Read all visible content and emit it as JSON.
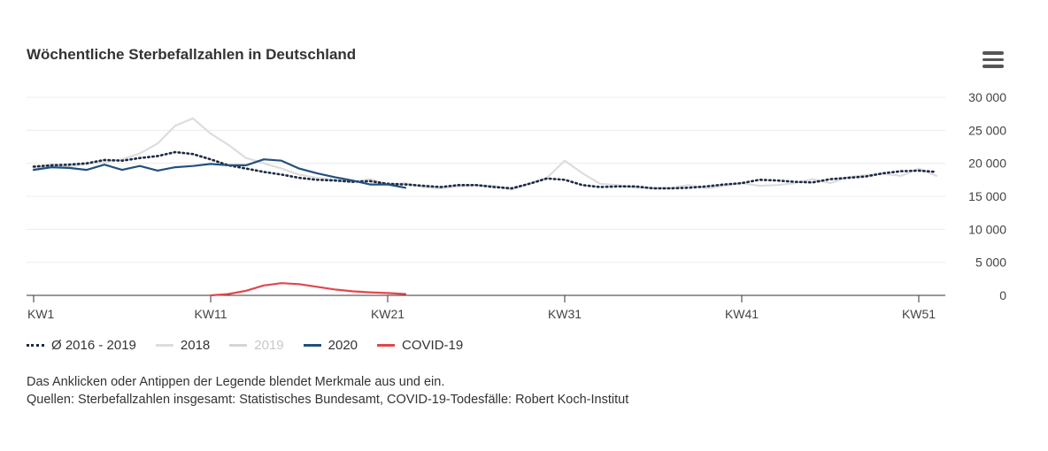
{
  "header": {
    "title": "Wöchentliche Sterbefallzahlen in Deutschland",
    "menu_icon": "hamburger-menu-icon"
  },
  "chart_data": {
    "type": "line",
    "title": "Wöchentliche Sterbefallzahlen in Deutschland",
    "xlabel": "",
    "ylabel": "",
    "xlim": [
      1,
      53
    ],
    "ylim": [
      0,
      30000
    ],
    "x_ticks": [
      1,
      11,
      21,
      31,
      41,
      51
    ],
    "x_tick_labels": [
      "KW1",
      "KW11",
      "KW21",
      "KW31",
      "KW41",
      "KW51"
    ],
    "y_ticks": [
      0,
      5000,
      10000,
      15000,
      20000,
      25000,
      30000
    ],
    "y_tick_labels": [
      "0",
      "5 000",
      "10 000",
      "15 000",
      "20 000",
      "25 000",
      "30 000"
    ],
    "grid": true,
    "legend_position": "bottom-left",
    "series": [
      {
        "name": "Ø 2016 - 2019",
        "color": "#1b2a44",
        "style": "dotted",
        "visible": true,
        "x": [
          1,
          2,
          3,
          4,
          5,
          6,
          7,
          8,
          9,
          10,
          11,
          12,
          13,
          14,
          15,
          16,
          17,
          18,
          19,
          20,
          21,
          22,
          23,
          24,
          25,
          26,
          27,
          28,
          29,
          30,
          31,
          32,
          33,
          34,
          35,
          36,
          37,
          38,
          39,
          40,
          41,
          42,
          43,
          44,
          45,
          46,
          47,
          48,
          49,
          50,
          51,
          52
        ],
        "values": [
          19500,
          19700,
          19800,
          20000,
          20500,
          20400,
          20800,
          21100,
          21700,
          21400,
          20600,
          19700,
          19200,
          18700,
          18300,
          17800,
          17500,
          17400,
          17200,
          17300,
          16900,
          16800,
          16600,
          16400,
          16700,
          16700,
          16400,
          16200,
          16900,
          17700,
          17500,
          16700,
          16400,
          16500,
          16500,
          16200,
          16200,
          16300,
          16500,
          16800,
          17000,
          17500,
          17400,
          17200,
          17100,
          17600,
          17800,
          18000,
          18500,
          18800,
          18900,
          18700
        ]
      },
      {
        "name": "2018",
        "color": "#dddddd",
        "style": "solid",
        "visible": true,
        "x": [
          1,
          2,
          3,
          4,
          5,
          6,
          7,
          8,
          9,
          10,
          11,
          12,
          13,
          14,
          15,
          16,
          17,
          18,
          19,
          20,
          21,
          22,
          23,
          24,
          25,
          26,
          27,
          28,
          29,
          30,
          31,
          32,
          33,
          34,
          35,
          36,
          37,
          38,
          39,
          40,
          41,
          42,
          43,
          44,
          45,
          46,
          47,
          48,
          49,
          50,
          51,
          52
        ],
        "values": [
          19200,
          19800,
          19500,
          19900,
          20200,
          20600,
          21500,
          23000,
          25700,
          26800,
          24500,
          22800,
          20800,
          20000,
          19200,
          18300,
          17800,
          17500,
          17200,
          17600,
          16800,
          17000,
          16400,
          16200,
          16500,
          16700,
          16600,
          16000,
          16900,
          17800,
          20400,
          18500,
          16900,
          16700,
          16300,
          16300,
          16300,
          16700,
          16200,
          16600,
          17000,
          16600,
          16700,
          17000,
          17600,
          17000,
          17900,
          18200,
          18400,
          18100,
          19200,
          18100
        ]
      },
      {
        "name": "2019",
        "color": "#d6d6d6",
        "style": "solid",
        "visible": false,
        "x": [],
        "values": []
      },
      {
        "name": "2020",
        "color": "#22507d",
        "style": "solid",
        "visible": true,
        "x": [
          1,
          2,
          3,
          4,
          5,
          6,
          7,
          8,
          9,
          10,
          11,
          12,
          13,
          14,
          15,
          16,
          17,
          18,
          19,
          20,
          21,
          22
        ],
        "values": [
          19000,
          19400,
          19300,
          19000,
          19800,
          19000,
          19600,
          18900,
          19400,
          19600,
          19900,
          19700,
          19700,
          20600,
          20400,
          19200,
          18500,
          17900,
          17400,
          16800,
          16800,
          16300
        ]
      },
      {
        "name": "COVID-19",
        "color": "#e0474c",
        "style": "solid",
        "visible": true,
        "x": [
          11,
          12,
          13,
          14,
          15,
          16,
          17,
          18,
          19,
          20,
          21,
          22
        ],
        "values": [
          0,
          200,
          700,
          1500,
          1850,
          1700,
          1300,
          900,
          620,
          450,
          350,
          200
        ]
      }
    ]
  },
  "note": {
    "line1": "Das Anklicken oder Antippen der Legende blendet Merkmale aus und ein.",
    "line2": "Quellen: Sterbefallzahlen insgesamt: Statistisches Bundesamt, COVID-19-Todesfälle: Robert Koch-Institut"
  }
}
